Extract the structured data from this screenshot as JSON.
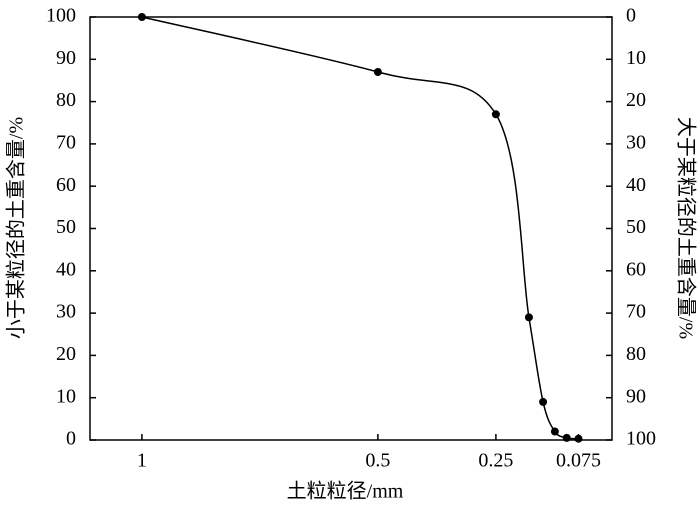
{
  "chart_data": {
    "type": "line",
    "x_label": "土粒粒径/mm",
    "y_label": "小于某粒径的土重含量/%",
    "y2_label": "大于某粒径的土重含量/%",
    "x": [
      1,
      0.5,
      0.25,
      0.18,
      0.15,
      0.125,
      0.1,
      0.075
    ],
    "values": [
      100,
      87,
      77,
      29,
      9,
      2,
      0.5,
      0.3
    ],
    "color": "#000000",
    "xlim": [
      1.11,
      0.004
    ],
    "xticks": [
      1,
      0.5,
      0.25,
      0.075
    ],
    "ylim": [
      0,
      100
    ],
    "yticks": [
      0,
      10,
      20,
      30,
      40,
      50,
      60,
      70,
      80,
      90,
      100
    ],
    "y2lim": [
      100,
      0
    ],
    "y2ticks": [
      0,
      10,
      20,
      30,
      40,
      50,
      60,
      70,
      80,
      90,
      100
    ]
  }
}
